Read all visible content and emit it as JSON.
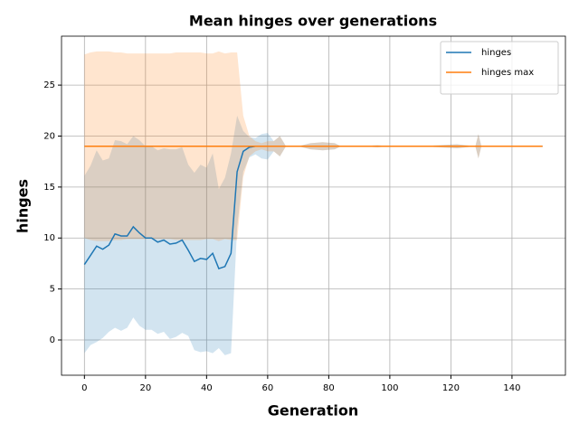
{
  "chart_data": {
    "type": "line",
    "title": "Mean hinges over generations",
    "xlabel": "Generation",
    "ylabel": "hinges",
    "x": [
      0,
      2,
      4,
      6,
      8,
      10,
      12,
      14,
      16,
      18,
      20,
      22,
      24,
      26,
      28,
      30,
      32,
      34,
      36,
      38,
      40,
      42,
      44,
      46,
      48,
      50,
      52,
      54,
      56,
      58,
      60,
      62,
      64,
      66,
      70,
      74,
      78,
      82,
      84,
      90,
      96,
      100,
      110,
      122,
      128,
      129,
      130,
      140,
      150
    ],
    "series": [
      {
        "name": "hinges",
        "color": "#1f77b4",
        "values": [
          7.4,
          8.3,
          9.2,
          8.9,
          9.3,
          10.4,
          10.2,
          10.2,
          11.1,
          10.5,
          10.0,
          10.0,
          9.6,
          9.8,
          9.4,
          9.5,
          9.8,
          8.8,
          7.7,
          8.0,
          7.9,
          8.5,
          7.0,
          7.2,
          8.5,
          16.5,
          18.5,
          18.9,
          19,
          19,
          19,
          19,
          19,
          19,
          19,
          19,
          19,
          19,
          19,
          19,
          19,
          19,
          19,
          19,
          19,
          19,
          19,
          19,
          19
        ],
        "std": [
          8.7,
          8.8,
          9.4,
          8.7,
          8.5,
          9.2,
          9.3,
          9.0,
          8.9,
          9.1,
          9.0,
          9.0,
          9.0,
          9.0,
          9.3,
          9.2,
          9.1,
          8.4,
          8.7,
          9.2,
          9.0,
          9.8,
          7.8,
          8.7,
          9.8,
          5.5,
          2.0,
          1.0,
          0.8,
          1.2,
          1.3,
          0.5,
          1.0,
          0,
          0,
          0.3,
          0.4,
          0.3,
          0,
          0,
          0.1,
          0,
          0,
          0.2,
          0,
          1.2,
          0,
          0,
          0
        ]
      },
      {
        "name": "hinges max",
        "color": "#ff7f0e",
        "values": [
          19,
          19,
          19,
          19,
          19,
          19,
          19,
          19,
          19,
          19,
          19,
          19,
          19,
          19,
          19,
          19,
          19,
          19,
          19,
          19,
          19,
          19,
          19,
          19,
          19,
          19,
          19,
          19,
          19,
          19,
          19,
          19,
          19,
          19,
          19,
          19,
          19,
          19,
          19,
          19,
          19,
          19,
          19,
          19,
          19,
          19,
          19,
          19,
          19
        ],
        "std": [
          9.0,
          9.2,
          9.3,
          9.3,
          9.3,
          9.2,
          9.2,
          9.1,
          9.1,
          9.1,
          9.1,
          9.1,
          9.1,
          9.1,
          9.1,
          9.2,
          9.2,
          9.2,
          9.2,
          9.2,
          9.1,
          9.1,
          9.3,
          9.1,
          9.2,
          9.2,
          3.0,
          1.0,
          0.5,
          0.3,
          0.5,
          0.5,
          1.0,
          0,
          0,
          0.3,
          0.4,
          0.3,
          0,
          0,
          0.1,
          0,
          0,
          0.2,
          0,
          1.2,
          0,
          0,
          0
        ]
      }
    ],
    "xlim": [
      -7.5,
      157.5
    ],
    "ylim": [
      -3.46,
      29.8
    ],
    "xticks": [
      0,
      20,
      40,
      60,
      80,
      100,
      120,
      140
    ],
    "yticks": [
      0,
      5,
      10,
      15,
      20,
      25
    ],
    "grid": true,
    "legend": "upper right"
  }
}
